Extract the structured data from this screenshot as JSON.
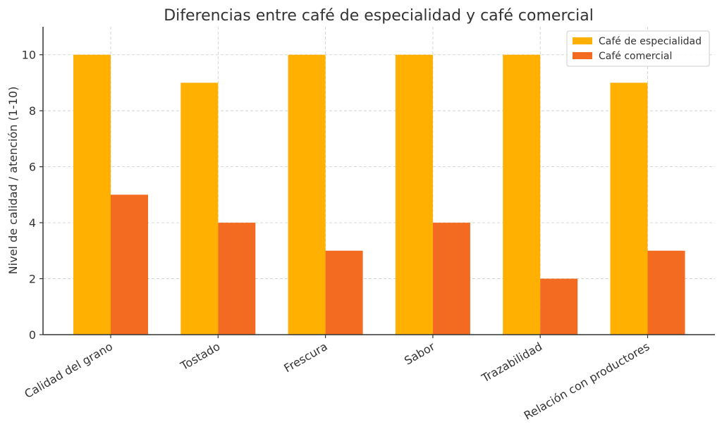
{
  "chart_data": {
    "type": "bar",
    "title": "Diferencias entre café de especialidad y café comercial",
    "xlabel": "",
    "ylabel": "Nivel de calidad / atención (1-10)",
    "categories": [
      "Calidad del grano",
      "Tostado",
      "Frescura",
      "Sabor",
      "Trazabilidad",
      "Relación con productores"
    ],
    "series": [
      {
        "name": "Café de especialidad",
        "color": "#FFB000",
        "values": [
          10,
          9,
          10,
          10,
          10,
          9
        ]
      },
      {
        "name": "Café comercial",
        "color": "#F26B21",
        "values": [
          5,
          4,
          3,
          4,
          2,
          3
        ]
      }
    ],
    "ylim": [
      0,
      11
    ],
    "yticks": [
      0,
      2,
      4,
      6,
      8,
      10
    ],
    "grid": true,
    "legend_position": "top-right"
  }
}
